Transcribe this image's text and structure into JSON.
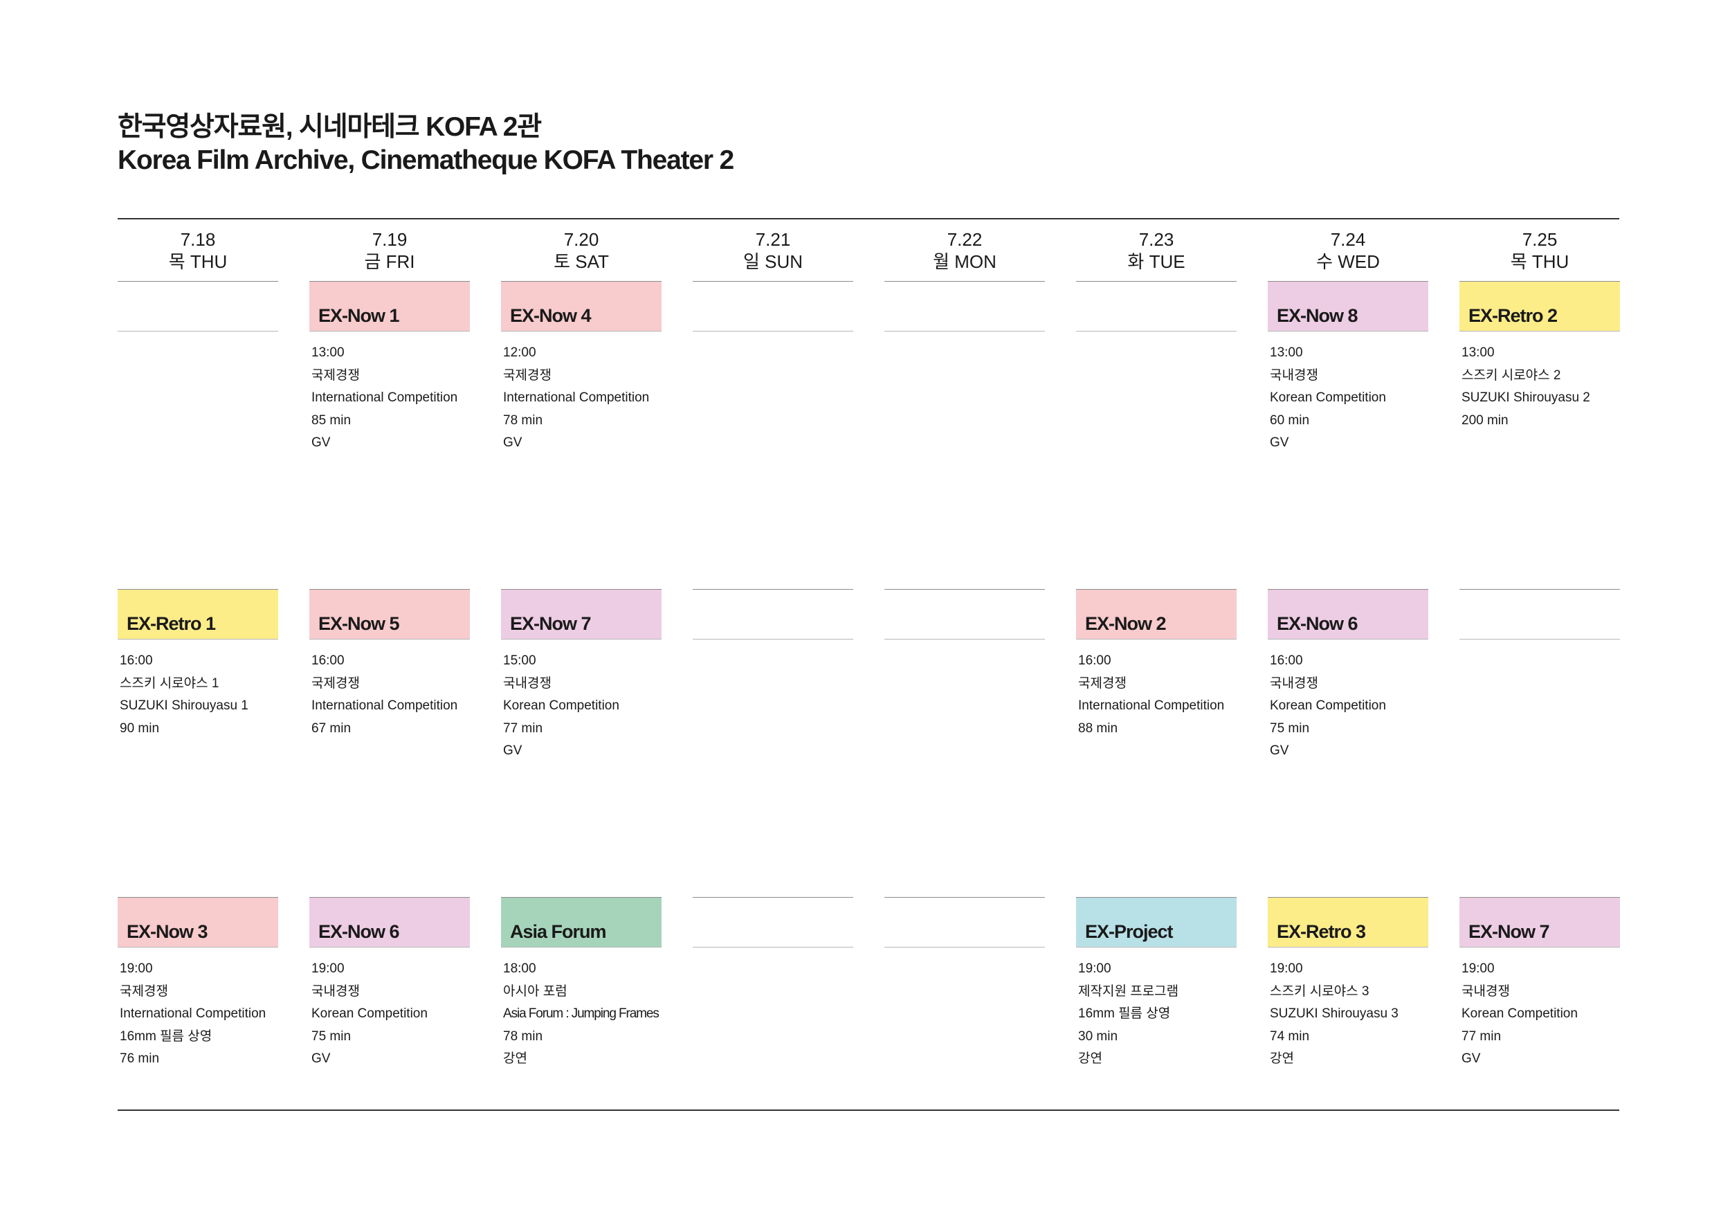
{
  "title": {
    "ko": "한국영상자료원, 시네마테크 KOFA 2관",
    "en": "Korea Film Archive, Cinematheque KOFA Theater 2"
  },
  "colors": {
    "ex_now_pink": "#f8cbcd",
    "ex_now_purple": "#edcde4",
    "ex_retro_yellow": "#fded89",
    "asia_forum_green": "#a5d4bb",
    "ex_project_blue": "#b8e0e7"
  },
  "days": [
    {
      "date": "7.18",
      "weekday": "목 THU"
    },
    {
      "date": "7.19",
      "weekday": "금 FRI"
    },
    {
      "date": "7.20",
      "weekday": "토 SAT"
    },
    {
      "date": "7.21",
      "weekday": "일 SUN"
    },
    {
      "date": "7.22",
      "weekday": "월 MON"
    },
    {
      "date": "7.23",
      "weekday": "화 TUE"
    },
    {
      "date": "7.24",
      "weekday": "수 WED"
    },
    {
      "date": "7.25",
      "weekday": "목 THU"
    }
  ],
  "rows": [
    [
      null,
      {
        "name": "EX-Now 1",
        "color": "#f8cbcd",
        "lines": [
          "13:00",
          "국제경쟁",
          "International Competition",
          "85 min",
          "GV"
        ]
      },
      {
        "name": "EX-Now 4",
        "color": "#f8cbcd",
        "lines": [
          "12:00",
          "국제경쟁",
          "International Competition",
          "78 min",
          "GV"
        ]
      },
      null,
      null,
      null,
      {
        "name": "EX-Now 8",
        "color": "#edcde4",
        "lines": [
          "13:00",
          "국내경쟁",
          "Korean Competition",
          "60 min",
          "GV"
        ]
      },
      {
        "name": "EX-Retro 2",
        "color": "#fded89",
        "lines": [
          "13:00",
          "스즈키 시로야스 2",
          "SUZUKI Shirouyasu 2",
          "200 min"
        ]
      }
    ],
    [
      {
        "name": "EX-Retro 1",
        "color": "#fded89",
        "lines": [
          "16:00",
          "스즈키 시로야스 1",
          "SUZUKI Shirouyasu 1",
          "90 min"
        ]
      },
      {
        "name": "EX-Now 5",
        "color": "#f8cbcd",
        "lines": [
          "16:00",
          "국제경쟁",
          "International Competition",
          "67 min"
        ]
      },
      {
        "name": "EX-Now 7",
        "color": "#edcde4",
        "lines": [
          "15:00",
          "국내경쟁",
          "Korean Competition",
          "77 min",
          "GV"
        ]
      },
      null,
      null,
      {
        "name": "EX-Now 2",
        "color": "#f8cbcd",
        "lines": [
          "16:00",
          "국제경쟁",
          "International Competition",
          "88 min"
        ]
      },
      {
        "name": "EX-Now 6",
        "color": "#edcde4",
        "lines": [
          "16:00",
          "국내경쟁",
          "Korean Competition",
          "75 min",
          "GV"
        ]
      },
      null
    ],
    [
      {
        "name": "EX-Now 3",
        "color": "#f8cbcd",
        "lines": [
          "19:00",
          "국제경쟁",
          "International Competition",
          "16mm 필름 상영",
          "76 min"
        ]
      },
      {
        "name": "EX-Now 6",
        "color": "#edcde4",
        "lines": [
          "19:00",
          "국내경쟁",
          "Korean Competition",
          "75 min",
          "GV"
        ]
      },
      {
        "name": "Asia Forum",
        "color": "#a5d4bb",
        "lines": [
          "18:00",
          "아시아 포럼",
          "Asia Forum : Jumping Frames",
          "78 min",
          "강연"
        ]
      },
      null,
      null,
      {
        "name": "EX-Project",
        "color": "#b8e0e7",
        "lines": [
          "19:00",
          "제작지원 프로그램",
          "16mm 필름 상영",
          "30 min",
          "강연"
        ]
      },
      {
        "name": "EX-Retro 3",
        "color": "#fded89",
        "lines": [
          "19:00",
          "스즈키 시로야스 3",
          "SUZUKI Shirouyasu 3",
          "74 min",
          "강연"
        ]
      },
      {
        "name": "EX-Now 7",
        "color": "#edcde4",
        "lines": [
          "19:00",
          "국내경쟁",
          "Korean Competition",
          "77 min",
          "GV"
        ]
      }
    ]
  ]
}
